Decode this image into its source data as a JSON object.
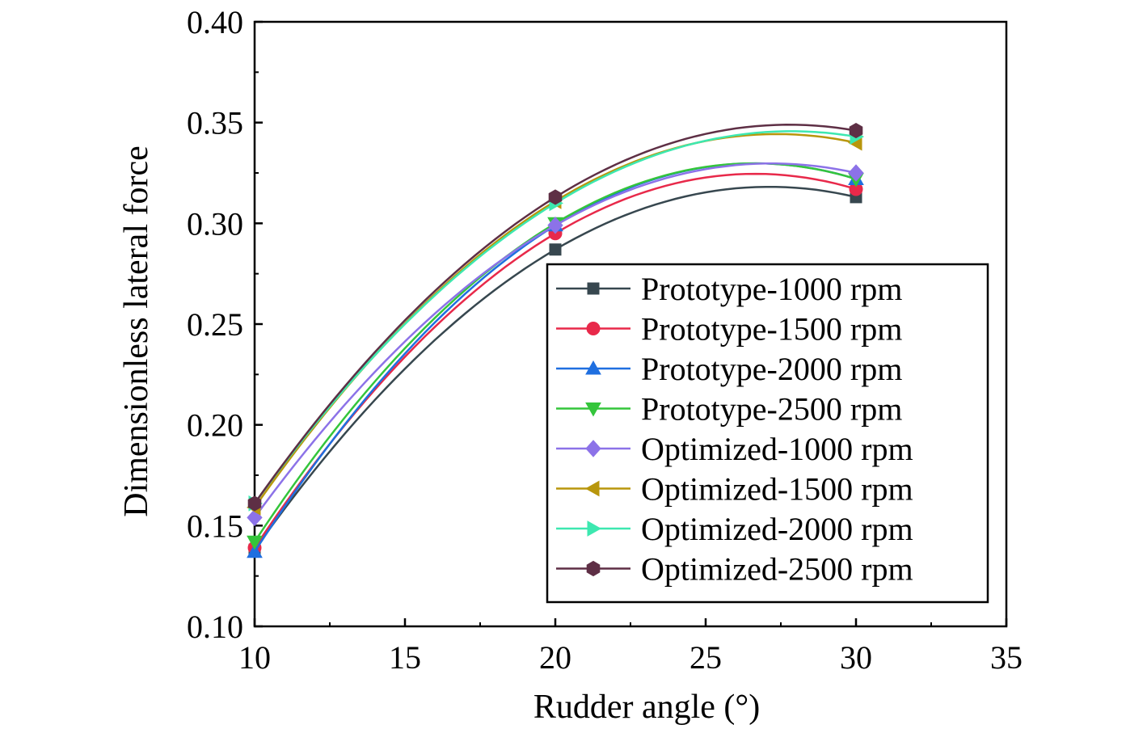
{
  "chart_data": {
    "type": "line",
    "title": "",
    "xlabel": "Rudder angle (°)",
    "ylabel": "Dimensionless lateral force",
    "xlim": [
      10,
      35
    ],
    "ylim": [
      0.1,
      0.4
    ],
    "x_ticks": [
      "10",
      "15",
      "20",
      "25",
      "30",
      "35"
    ],
    "y_ticks": [
      "0.10",
      "0.15",
      "0.20",
      "0.25",
      "0.30",
      "0.35",
      "0.40"
    ],
    "grid": false,
    "legend_position": "bottom-right",
    "x": [
      10,
      20,
      30
    ],
    "series": [
      {
        "name": "Prototype-1000 rpm",
        "values": [
          0.138,
          0.287,
          0.313
        ],
        "color": "#37474f",
        "marker": "square"
      },
      {
        "name": "Prototype-1500 rpm",
        "values": [
          0.139,
          0.295,
          0.317
        ],
        "color": "#e8294a",
        "marker": "circle"
      },
      {
        "name": "Prototype-2000 rpm",
        "values": [
          0.137,
          0.299,
          0.322
        ],
        "color": "#1f6fe0",
        "marker": "triangle-up"
      },
      {
        "name": "Prototype-2500 rpm",
        "values": [
          0.142,
          0.3,
          0.322
        ],
        "color": "#34c53b",
        "marker": "triangle-down"
      },
      {
        "name": "Optimized-1000 rpm",
        "values": [
          0.154,
          0.299,
          0.325
        ],
        "color": "#8c72e8",
        "marker": "diamond"
      },
      {
        "name": "Optimized-1500 rpm",
        "values": [
          0.159,
          0.311,
          0.34
        ],
        "color": "#b8960c",
        "marker": "triangle-left"
      },
      {
        "name": "Optimized-2000 rpm",
        "values": [
          0.161,
          0.31,
          0.343
        ],
        "color": "#3de8b0",
        "marker": "triangle-right"
      },
      {
        "name": "Optimized-2500 rpm",
        "values": [
          0.161,
          0.313,
          0.346
        ],
        "color": "#5e2f45",
        "marker": "hexagon"
      }
    ]
  }
}
